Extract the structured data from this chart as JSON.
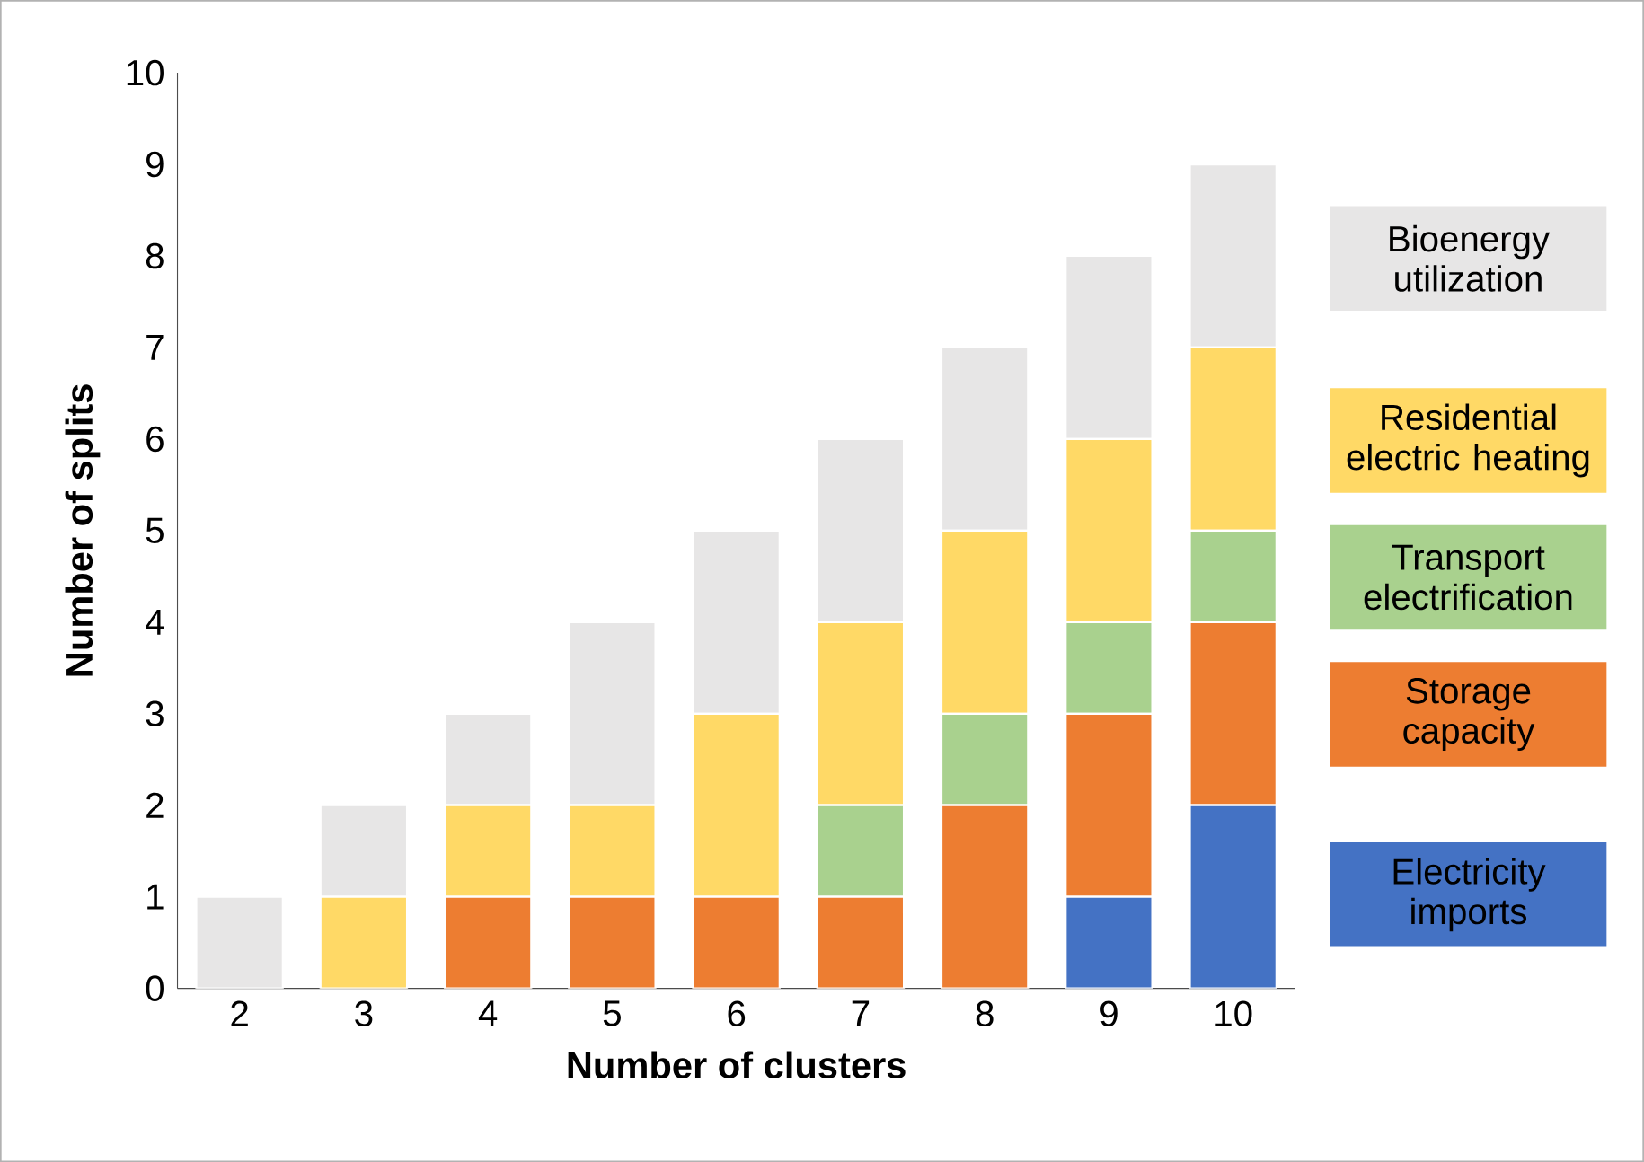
{
  "chart_data": {
    "type": "bar",
    "stacked": true,
    "xlabel": "Number of clusters",
    "ylabel": "Number of splits",
    "categories": [
      "2",
      "3",
      "4",
      "5",
      "6",
      "7",
      "8",
      "9",
      "10"
    ],
    "series": [
      {
        "name": "Electricity imports",
        "color": "#4472c4",
        "values": [
          0,
          0,
          0,
          0,
          0,
          0,
          0,
          1,
          2
        ]
      },
      {
        "name": "Storage capacity",
        "color": "#ed7d31",
        "values": [
          0,
          0,
          1,
          1,
          1,
          1,
          2,
          2,
          2
        ]
      },
      {
        "name": "Transport electrification",
        "color": "#a9d18e",
        "values": [
          0,
          0,
          0,
          0,
          0,
          1,
          1,
          1,
          1
        ]
      },
      {
        "name": "Residential electric heating",
        "color": "#ffd966",
        "values": [
          0,
          1,
          1,
          1,
          2,
          2,
          2,
          2,
          2
        ]
      },
      {
        "name": "Bioenergy utilization",
        "color": "#e7e6e6",
        "values": [
          1,
          1,
          1,
          2,
          2,
          2,
          2,
          2,
          2
        ]
      }
    ],
    "ylim": [
      0,
      10
    ],
    "yticks": [
      0,
      1,
      2,
      3,
      4,
      5,
      6,
      7,
      8,
      9,
      10
    ],
    "legend": "right",
    "grid": false
  }
}
